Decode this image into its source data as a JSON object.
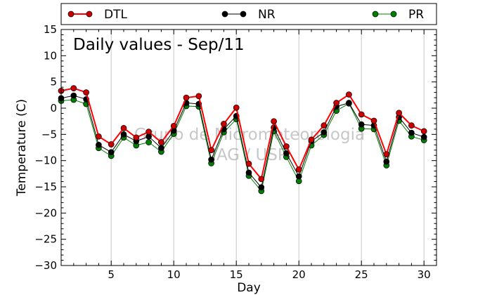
{
  "chart_data": {
    "type": "line",
    "title": "Daily values - Sep/11",
    "xlabel": "Day",
    "ylabel": "Temperature (C)",
    "xlim": [
      1,
      31
    ],
    "ylim": [
      -30,
      15
    ],
    "xticks": [
      5,
      10,
      15,
      20,
      25,
      30
    ],
    "yticks": [
      -30,
      -25,
      -20,
      -15,
      -10,
      -5,
      0,
      5,
      10,
      15
    ],
    "xtick_labels": [
      "5",
      "10",
      "15",
      "20",
      "25",
      "30"
    ],
    "ytick_labels": [
      "−30",
      "−25",
      "−20",
      "−15",
      "−10",
      "−5",
      "0",
      "5",
      "10",
      "15"
    ],
    "grid": "vertical",
    "legend_position": "top",
    "x": [
      1,
      2,
      3,
      4,
      5,
      6,
      7,
      8,
      9,
      10,
      11,
      12,
      13,
      14,
      15,
      16,
      17,
      18,
      19,
      20,
      21,
      22,
      23,
      24,
      25,
      26,
      27,
      28,
      29,
      30
    ],
    "series": [
      {
        "name": "DTL",
        "color": "#ff0000",
        "marker_color": "#cc0000",
        "values": [
          3.3,
          3.8,
          3.0,
          -5.4,
          -6.9,
          -3.8,
          -5.6,
          -4.5,
          -6.5,
          -3.4,
          2.0,
          2.3,
          -8.0,
          -3.0,
          0.1,
          -10.6,
          -13.5,
          -2.5,
          -7.3,
          -11.7,
          -6.0,
          -3.3,
          1.0,
          2.6,
          -1.2,
          -2.4,
          -8.8,
          -0.9,
          -3.3,
          -4.4
        ]
      },
      {
        "name": "NR",
        "color": "#000000",
        "marker_color": "#000000",
        "values": [
          1.9,
          2.4,
          1.7,
          -7.0,
          -8.4,
          -5.0,
          -6.3,
          -5.4,
          -7.6,
          -4.3,
          1.0,
          0.8,
          -9.8,
          -4.0,
          -1.5,
          -12.3,
          -15.1,
          -3.7,
          -8.6,
          -13.0,
          -6.3,
          -4.6,
          0.3,
          1.0,
          -3.1,
          -3.3,
          -10.2,
          -1.7,
          -4.7,
          -5.5
        ]
      },
      {
        "name": "PR",
        "color": "#008000",
        "marker_color": "#008000",
        "values": [
          1.4,
          1.6,
          0.8,
          -7.6,
          -9.1,
          -5.6,
          -7.1,
          -6.5,
          -8.3,
          -4.9,
          0.4,
          0.3,
          -10.5,
          -4.6,
          -2.1,
          -12.9,
          -15.8,
          -4.4,
          -9.3,
          -13.9,
          -7.1,
          -5.1,
          -0.5,
          0.9,
          -3.9,
          -4.0,
          -10.9,
          -2.4,
          -5.4,
          -6.1
        ]
      }
    ]
  },
  "watermark": {
    "line1": "Grupo de Micrometeorologia",
    "line2": "IAG / USP"
  }
}
